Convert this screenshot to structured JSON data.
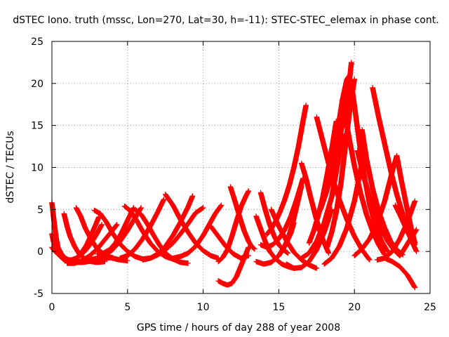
{
  "chart_data": {
    "type": "scatter",
    "title": "dSTEC Iono. truth (mssc, Lon=270, Lat=30, h=-11): STEC-STEC_elemax in phase cont.",
    "xlabel": "GPS time / hours of day 288 of year 2008",
    "ylabel": "dSTEC  / TECUs",
    "xlim": [
      0,
      25
    ],
    "ylim": [
      -5,
      25
    ],
    "xticks": [
      0,
      5,
      10,
      15,
      20,
      25
    ],
    "yticks": [
      -5,
      0,
      5,
      10,
      15,
      20,
      25
    ],
    "grid": true,
    "legend": "none",
    "marker": "plus",
    "color": "#ff0000",
    "series": [
      {
        "x": [
          0.0,
          0.1,
          0.2,
          0.3,
          0.4,
          0.6,
          0.8,
          1.1,
          1.5,
          2.0,
          2.5,
          3.0
        ],
        "y": [
          5.8,
          4.2,
          2.7,
          1.4,
          0.5,
          -0.2,
          -0.7,
          -1.0,
          -1.2,
          -1.2,
          -1.0,
          -0.8
        ]
      },
      {
        "x": [
          0.0,
          0.1,
          0.3,
          0.5,
          0.8,
          1.0,
          1.3,
          1.6,
          2.0,
          2.4,
          2.8,
          3.2,
          3.6,
          4.0
        ],
        "y": [
          2.1,
          1.2,
          0.3,
          -0.3,
          -0.8,
          -1.0,
          -1.2,
          -1.3,
          -1.3,
          -1.2,
          -1.0,
          -0.9,
          -0.8,
          -0.7
        ]
      },
      {
        "x": [
          0.0,
          0.2,
          0.4,
          0.7,
          1.0,
          1.3,
          1.6,
          2.0,
          2.3,
          2.7,
          3.0,
          3.3
        ],
        "y": [
          0.5,
          0.0,
          -0.3,
          -0.7,
          -1.0,
          -1.0,
          -0.8,
          -0.3,
          0.3,
          1.3,
          2.2,
          3.2
        ]
      },
      {
        "x": [
          0.8,
          1.0,
          1.2,
          1.5,
          1.8,
          2.2,
          2.6,
          3.0,
          3.5
        ],
        "y": [
          4.5,
          3.0,
          1.8,
          0.6,
          -0.3,
          -0.9,
          -1.2,
          -1.3,
          -1.2
        ]
      },
      {
        "x": [
          0.5,
          0.8,
          1.1,
          1.5,
          1.9,
          2.3,
          2.6,
          2.9,
          3.1
        ],
        "y": [
          -0.5,
          -1.0,
          -1.2,
          -1.0,
          -0.3,
          0.8,
          2.0,
          3.2,
          4.1
        ]
      },
      {
        "x": [
          1.6,
          1.9,
          2.2,
          2.6,
          3.0,
          3.5,
          4.0,
          4.5,
          5.0
        ],
        "y": [
          5.2,
          4.2,
          2.8,
          1.4,
          0.3,
          -0.4,
          -0.8,
          -1.0,
          -1.1
        ]
      },
      {
        "x": [
          1.0,
          1.5,
          2.0,
          2.5,
          3.0,
          3.5,
          4.0,
          4.3
        ],
        "y": [
          -1.4,
          -1.4,
          -1.1,
          -0.5,
          0.3,
          1.4,
          2.5,
          3.2
        ]
      },
      {
        "x": [
          2.8,
          3.2,
          3.6,
          4.0,
          4.5,
          5.0,
          5.5,
          6.0
        ],
        "y": [
          4.9,
          4.5,
          3.5,
          2.2,
          0.9,
          0.0,
          -0.6,
          -0.9
        ]
      },
      {
        "x": [
          2.5,
          3.0,
          3.5,
          4.0,
          4.5,
          5.0,
          5.5,
          5.9
        ],
        "y": [
          -1.0,
          -0.9,
          -0.5,
          0.2,
          1.2,
          2.5,
          4.0,
          5.2
        ]
      },
      {
        "x": [
          3.0,
          3.4,
          3.8,
          4.2,
          4.6,
          5.0,
          5.4
        ],
        "y": [
          -0.3,
          -0.2,
          0.2,
          1.0,
          2.2,
          3.7,
          5.2
        ]
      },
      {
        "x": [
          4.8,
          5.2,
          5.6,
          6.0,
          6.5,
          7.0,
          7.5,
          8.0
        ],
        "y": [
          5.4,
          4.8,
          3.7,
          2.4,
          1.0,
          0.0,
          -0.6,
          -0.9
        ]
      },
      {
        "x": [
          4.5,
          5.0,
          5.5,
          6.0,
          6.5,
          7.0,
          7.4
        ],
        "y": [
          -0.8,
          -0.5,
          0.3,
          1.5,
          3.0,
          4.7,
          6.2
        ]
      },
      {
        "x": [
          5.5,
          5.9,
          6.3,
          6.7,
          7.1,
          7.5,
          8.0,
          8.5,
          9.0
        ],
        "y": [
          5.0,
          4.4,
          3.3,
          2.0,
          0.8,
          -0.2,
          -0.9,
          -1.3,
          -1.4
        ]
      },
      {
        "x": [
          6.0,
          6.5,
          7.0,
          7.5,
          8.0,
          8.5,
          9.0,
          9.3
        ],
        "y": [
          -1.0,
          -0.8,
          -0.3,
          0.6,
          1.9,
          3.5,
          5.3,
          6.6
        ]
      },
      {
        "x": [
          6.0,
          6.5,
          7.0,
          7.5,
          8.0,
          8.5,
          9.0,
          9.5,
          10.0
        ],
        "y": [
          -0.9,
          -0.8,
          -0.4,
          0.2,
          1.0,
          2.1,
          3.3,
          4.6,
          5.2
        ]
      },
      {
        "x": [
          7.5,
          8.0,
          8.5,
          9.0,
          9.5,
          10.0,
          10.5,
          11.0
        ],
        "y": [
          6.8,
          5.5,
          3.8,
          2.3,
          1.0,
          0.1,
          -0.5,
          -0.8
        ]
      },
      {
        "x": [
          8.0,
          8.5,
          9.0,
          9.5,
          10.0,
          10.4,
          10.8,
          11.2
        ],
        "y": [
          -0.8,
          -0.6,
          -0.2,
          0.6,
          1.9,
          3.2,
          4.5,
          5.5
        ]
      },
      {
        "x": [
          10.5,
          11.0,
          11.5,
          12.0,
          12.5,
          13.0
        ],
        "y": [
          3.0,
          1.8,
          0.6,
          -0.3,
          -0.8,
          -0.5
        ]
      },
      {
        "x": [
          11.0,
          11.3,
          11.6,
          11.9,
          12.2,
          12.5,
          12.8,
          13.0
        ],
        "y": [
          -1.2,
          -0.7,
          0.2,
          1.8,
          3.6,
          5.3,
          6.5,
          7.2
        ]
      },
      {
        "x": [
          11.0,
          11.3,
          11.6,
          11.9,
          12.2,
          12.5,
          12.8,
          13.0
        ],
        "y": [
          -3.5,
          -3.8,
          -4.0,
          -3.8,
          -3.0,
          -1.7,
          -0.4,
          0.5
        ]
      },
      {
        "x": [
          11.8,
          12.1,
          12.4,
          12.7,
          13.0,
          13.2,
          13.4
        ],
        "y": [
          7.7,
          6.0,
          4.2,
          2.5,
          1.2,
          0.6,
          0.3
        ]
      },
      {
        "x": [
          13.5,
          13.8,
          14.1,
          14.4,
          14.8,
          15.2,
          15.6,
          16.0
        ],
        "y": [
          4.2,
          2.7,
          1.2,
          0.0,
          -0.9,
          -1.5,
          -1.8,
          -2.0
        ]
      },
      {
        "x": [
          13.8,
          14.1,
          14.4,
          14.7,
          15.0,
          15.3,
          15.6
        ],
        "y": [
          7.0,
          5.0,
          3.2,
          1.8,
          0.8,
          0.2,
          -0.2
        ]
      },
      {
        "x": [
          13.5,
          14.0,
          14.5,
          15.0,
          15.5,
          15.8,
          16.0
        ],
        "y": [
          -1.2,
          -1.5,
          -1.3,
          -0.5,
          1.0,
          2.2,
          3.4
        ]
      },
      {
        "x": [
          13.8,
          14.2,
          14.6,
          15.0,
          15.4,
          15.8,
          16.2,
          16.6
        ],
        "y": [
          0.8,
          0.5,
          0.8,
          1.5,
          2.6,
          4.2,
          6.3,
          8.7
        ]
      },
      {
        "x": [
          14.2,
          14.5,
          14.8,
          15.1,
          15.4,
          15.7,
          16.0,
          16.3,
          16.6,
          16.8
        ],
        "y": [
          2.0,
          2.7,
          3.6,
          4.8,
          6.2,
          7.9,
          10.0,
          12.5,
          15.5,
          17.4
        ]
      },
      {
        "x": [
          14.5,
          15.0,
          15.5,
          16.0,
          16.5,
          17.0,
          17.5
        ],
        "y": [
          5.0,
          3.0,
          1.3,
          -0.1,
          -1.0,
          -1.6,
          -2.0
        ]
      },
      {
        "x": [
          15.0,
          15.3,
          15.6,
          15.9,
          16.2,
          16.5
        ],
        "y": [
          -0.5,
          0.3,
          1.5,
          3.2,
          5.5,
          7.8
        ]
      },
      {
        "x": [
          15.5,
          16.0,
          16.5,
          17.0,
          17.5,
          18.0,
          18.5
        ],
        "y": [
          -1.5,
          -2.0,
          -1.9,
          -1.2,
          0.2,
          2.3,
          5.0
        ]
      },
      {
        "x": [
          16.5,
          16.8,
          17.1,
          17.4,
          17.7,
          18.0,
          18.3
        ],
        "y": [
          10.5,
          8.7,
          6.5,
          4.4,
          2.5,
          1.0,
          -0.2
        ]
      },
      {
        "x": [
          16.5,
          17.0,
          17.5,
          18.0,
          18.5,
          18.9,
          19.2
        ],
        "y": [
          -0.8,
          -0.2,
          1.2,
          3.4,
          6.5,
          10.5,
          14.0
        ]
      },
      {
        "x": [
          17.0,
          17.3,
          17.6,
          17.9,
          18.2,
          18.5,
          18.8
        ],
        "y": [
          1.0,
          2.4,
          4.2,
          6.4,
          9.2,
          12.2,
          15.5
        ]
      },
      {
        "x": [
          17.5,
          17.8,
          18.1,
          18.4,
          18.7,
          19.0,
          19.3,
          19.6,
          19.8
        ],
        "y": [
          4.0,
          5.2,
          6.8,
          8.6,
          10.8,
          13.2,
          16.0,
          19.2,
          22.5
        ]
      },
      {
        "x": [
          17.5,
          18.0,
          18.5,
          19.0,
          19.5,
          20.0,
          20.5,
          21.0
        ],
        "y": [
          16.0,
          12.5,
          9.0,
          6.2,
          3.8,
          1.8,
          0.2,
          -1.0
        ]
      },
      {
        "x": [
          18.2,
          18.5,
          18.8,
          19.1,
          19.4,
          19.7,
          20.0
        ],
        "y": [
          0.5,
          2.3,
          4.7,
          8.0,
          12.5,
          17.0,
          20.5
        ]
      },
      {
        "x": [
          18.0,
          18.5,
          19.0,
          19.5,
          20.0,
          20.5
        ],
        "y": [
          -1.5,
          -0.8,
          0.6,
          2.8,
          6.0,
          10.5
        ]
      },
      {
        "x": [
          18.6,
          18.9,
          19.2,
          19.5,
          19.7
        ],
        "y": [
          11.0,
          14.5,
          18.0,
          20.5,
          21.0
        ]
      },
      {
        "x": [
          19.2,
          19.6,
          20.0,
          20.4,
          20.8,
          21.2,
          21.6,
          22.0
        ],
        "y": [
          18.0,
          14.0,
          10.2,
          7.0,
          4.4,
          2.4,
          0.8,
          -0.4
        ]
      },
      {
        "x": [
          19.8,
          20.1,
          20.4,
          20.7,
          21.0,
          21.4,
          21.8,
          22.2
        ],
        "y": [
          20.0,
          16.0,
          12.0,
          8.5,
          5.6,
          3.0,
          1.2,
          0.0
        ]
      },
      {
        "x": [
          20.2,
          20.6,
          21.0,
          21.4,
          21.8,
          22.2,
          22.6,
          23.0
        ],
        "y": [
          12.0,
          9.0,
          6.5,
          4.3,
          2.6,
          1.2,
          0.2,
          -0.5
        ]
      },
      {
        "x": [
          20.5,
          20.8,
          21.2,
          21.6,
          22.0,
          22.4,
          22.8,
          23.2
        ],
        "y": [
          14.5,
          11.0,
          7.5,
          4.8,
          2.8,
          1.2,
          0.2,
          -0.4
        ]
      },
      {
        "x": [
          21.2,
          21.6,
          22.0,
          22.4,
          22.8,
          23.2,
          23.6,
          24.0
        ],
        "y": [
          19.5,
          16.0,
          12.8,
          9.6,
          6.8,
          4.4,
          2.4,
          0.8
        ]
      },
      {
        "x": [
          20.0,
          20.5,
          21.0,
          21.5,
          22.0,
          22.5,
          22.8
        ],
        "y": [
          -0.5,
          0.3,
          1.5,
          3.3,
          6.0,
          9.5,
          11.4
        ]
      },
      {
        "x": [
          21.5,
          22.0,
          22.5,
          23.0,
          23.5,
          24.0
        ],
        "y": [
          -1.0,
          -0.8,
          0.0,
          1.5,
          3.5,
          6.0
        ]
      },
      {
        "x": [
          22.0,
          22.5,
          23.0,
          23.5,
          24.0
        ],
        "y": [
          -0.8,
          -1.2,
          -1.8,
          -2.8,
          -4.3
        ]
      },
      {
        "x": [
          22.8,
          23.1,
          23.4,
          23.7,
          24.0
        ],
        "y": [
          11.4,
          8.5,
          5.8,
          3.2,
          1.0
        ]
      },
      {
        "x": [
          22.7,
          23.0,
          23.3,
          23.6,
          23.9,
          24.1
        ],
        "y": [
          5.5,
          4.4,
          3.2,
          2.0,
          0.8,
          0.0
        ]
      },
      {
        "x": [
          23.0,
          23.3,
          23.6,
          23.9,
          24.1
        ],
        "y": [
          -0.5,
          0.3,
          1.2,
          2.0,
          2.6
        ]
      }
    ]
  }
}
